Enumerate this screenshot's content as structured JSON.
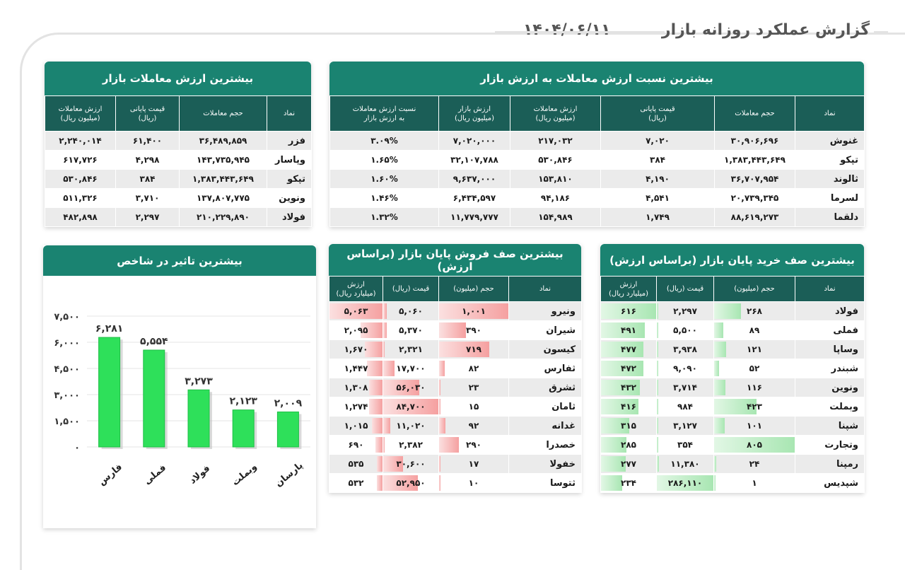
{
  "header": {
    "title": "گزارش عملکرد روزانه بازار",
    "date": "۱۴۰۴/۰۶/۱۱"
  },
  "top_value": {
    "title": "بیشترین ارزش معاملات بازار",
    "columns": [
      "نماد",
      "حجم معاملات",
      "قیمت پایانی\n(ریال)",
      "ارزش معاملات\n(میلیون ریال)"
    ],
    "rows": [
      [
        "فزر",
        "۳۶,۴۸۹,۸۵۹",
        "۶۱,۴۰۰",
        "۲,۲۴۰,۰۱۴"
      ],
      [
        "وپاسار",
        "۱۴۳,۷۳۵,۹۴۵",
        "۴,۲۹۸",
        "۶۱۷,۷۲۶"
      ],
      [
        "تپکو",
        "۱,۳۸۳,۴۴۳,۶۴۹",
        "۳۸۴",
        "۵۳۰,۸۴۶"
      ],
      [
        "ونوین",
        "۱۳۷,۸۰۷,۷۷۵",
        "۳,۷۱۰",
        "۵۱۱,۳۲۶"
      ],
      [
        "فولاد",
        "۲۱۰,۲۲۹,۸۹۰",
        "۲,۲۹۷",
        "۴۸۲,۸۹۸"
      ]
    ]
  },
  "top_ratio": {
    "title": "بیشترین نسبت ارزش معاملات به ارزش بازار",
    "columns": [
      "نماد",
      "حجم معاملات",
      "قیمت پایانی\n(ریال)",
      "ارزش معاملات\n(میلیون ریال)",
      "ارزش بازار\n(میلیون ریال)",
      "نسبت ارزش معاملات\nبه ارزش بازار"
    ],
    "rows": [
      [
        "غنوش",
        "۳۰,۹۰۶,۶۹۶",
        "۷,۰۲۰",
        "۲۱۷,۰۳۲",
        "۷,۰۲۰,۰۰۰",
        "۳.۰۹%"
      ],
      [
        "تپکو",
        "۱,۳۸۳,۴۴۳,۶۴۹",
        "۳۸۴",
        "۵۳۰,۸۴۶",
        "۳۲,۱۰۷,۷۸۸",
        "۱.۶۵%"
      ],
      [
        "ثالوند",
        "۳۶,۷۰۷,۹۵۴",
        "۴,۱۹۰",
        "۱۵۳,۸۱۰",
        "۹,۶۳۷,۰۰۰",
        "۱.۶۰%"
      ],
      [
        "لسرما",
        "۲۰,۷۳۹,۳۴۵",
        "۴,۵۴۱",
        "۹۴,۱۸۶",
        "۶,۴۳۴,۵۹۷",
        "۱.۴۶%"
      ],
      [
        "دلقما",
        "۸۸,۶۱۹,۲۷۳",
        "۱,۷۴۹",
        "۱۵۴,۹۸۹",
        "۱۱,۷۷۹,۷۷۷",
        "۱.۳۲%"
      ]
    ]
  },
  "sell_queue": {
    "title": "بیشترین صف فروش پایان بازار (براساس ارزش)",
    "columns": [
      "نماد",
      "حجم (میلیون)",
      "قیمت (ریال)",
      "ارزش\n(میلیارد ریال)"
    ],
    "rows": [
      [
        "ونیرو",
        "۱,۰۰۱",
        "۵,۰۶۰",
        "۵,۰۶۳"
      ],
      [
        "شیران",
        "۳۹۰",
        "۵,۳۷۰",
        "۲,۰۹۵"
      ],
      [
        "کیسون",
        "۷۱۹",
        "۲,۳۲۱",
        "۱,۶۷۰"
      ],
      [
        "ثفارس",
        "۸۲",
        "۱۷,۷۰۰",
        "۱,۴۴۷"
      ],
      [
        "ثشرق",
        "۲۳",
        "۵۶,۰۳۰",
        "۱,۳۰۸"
      ],
      [
        "ثامان",
        "۱۵",
        "۸۴,۷۰۰",
        "۱,۲۷۴"
      ],
      [
        "غدانه",
        "۹۲",
        "۱۱,۰۲۰",
        "۱,۰۱۵"
      ],
      [
        "خصدرا",
        "۲۹۰",
        "۲,۳۸۲",
        "۶۹۰"
      ],
      [
        "خفولا",
        "۱۷",
        "۳۰,۶۰۰",
        "۵۳۵"
      ],
      [
        "ثتوسا",
        "۱۰",
        "۵۲,۹۵۰",
        "۵۳۲"
      ]
    ],
    "vol_frac": [
      1.0,
      0.39,
      0.72,
      0.08,
      0.02,
      0.015,
      0.09,
      0.29,
      0.02,
      0.01
    ],
    "price_frac": [
      0.06,
      0.06,
      0.03,
      0.21,
      0.66,
      1.0,
      0.13,
      0.03,
      0.36,
      0.63
    ],
    "value_frac": [
      1.0,
      0.41,
      0.33,
      0.29,
      0.26,
      0.25,
      0.2,
      0.14,
      0.11,
      0.11
    ]
  },
  "buy_queue": {
    "title": "بیشترین صف خرید پایان بازار (براساس ارزش)",
    "columns": [
      "نماد",
      "حجم (میلیون)",
      "قیمت (ریال)",
      "ارزش\n(میلیارد ریال)"
    ],
    "rows": [
      [
        "فولاد",
        "۲۶۸",
        "۲,۲۹۷",
        "۶۱۶"
      ],
      [
        "فملی",
        "۸۹",
        "۵,۵۰۰",
        "۴۹۱"
      ],
      [
        "وساپا",
        "۱۲۱",
        "۳,۹۳۸",
        "۴۷۷"
      ],
      [
        "شبندر",
        "۵۲",
        "۹,۰۹۰",
        "۴۷۲"
      ],
      [
        "ونوین",
        "۱۱۶",
        "۳,۷۱۴",
        "۴۳۲"
      ],
      [
        "وبملت",
        "۴۲۳",
        "۹۸۴",
        "۴۱۶"
      ],
      [
        "شپنا",
        "۱۰۱",
        "۳,۱۲۷",
        "۳۱۵"
      ],
      [
        "وتجارت",
        "۸۰۵",
        "۳۵۴",
        "۲۸۵"
      ],
      [
        "رمپنا",
        "۲۴",
        "۱۱,۳۸۰",
        "۲۷۷"
      ],
      [
        "شپدیس",
        "۱",
        "۲۸۶,۱۱۰",
        "۲۳۴"
      ]
    ],
    "vol_frac": [
      0.33,
      0.11,
      0.15,
      0.06,
      0.14,
      0.53,
      0.13,
      1.0,
      0.03,
      0.0
    ],
    "price_frac": [
      0.01,
      0.02,
      0.01,
      0.03,
      0.01,
      0.0,
      0.01,
      0.0,
      0.04,
      1.0
    ],
    "value_frac": [
      1.0,
      0.8,
      0.77,
      0.77,
      0.7,
      0.68,
      0.51,
      0.46,
      0.45,
      0.38
    ]
  },
  "colors": {
    "teal": "#1a8371",
    "teal_dark": "#1b5e57",
    "red": "#f5a0a0",
    "green": "#a8e6b2",
    "bar_green": "#2ee05a"
  },
  "chart_data": {
    "type": "bar",
    "title": "بیشترین تاثیر در شاخص",
    "categories": [
      "فارس",
      "فملی",
      "فولاد",
      "وبملت",
      "پارسان"
    ],
    "values": [
      6281,
      5554,
      3273,
      2123,
      2009
    ],
    "value_labels": [
      "۶,۲۸۱",
      "۵,۵۵۴",
      "۳,۲۷۳",
      "۲,۱۲۳",
      "۲,۰۰۹"
    ],
    "ylim": [
      0,
      7500
    ],
    "yticks": [
      0,
      1500,
      3000,
      4500,
      6000,
      7500
    ],
    "ytick_labels": [
      "۰",
      "۱,۵۰۰",
      "۳,۰۰۰",
      "۴,۵۰۰",
      "۶,۰۰۰",
      "۷,۵۰۰"
    ],
    "grid": true
  }
}
